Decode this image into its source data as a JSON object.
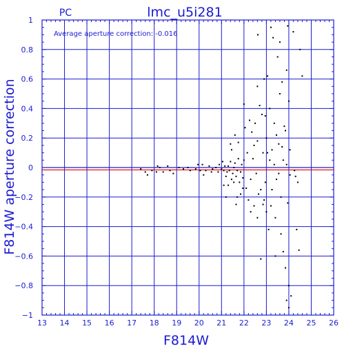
{
  "chart_data": {
    "type": "scatter",
    "panel_label": "PC",
    "title": "lmc_u5i281",
    "annotation": "Average aperture correction: -0.016",
    "xlabel": "F814W",
    "ylabel": "F814W aperture correction",
    "xlim": [
      13,
      26
    ],
    "ylim": [
      -1,
      1
    ],
    "x_ticks": [
      "13",
      "14",
      "15",
      "16",
      "17",
      "18",
      "19",
      "20",
      "21",
      "22",
      "23",
      "24",
      "25",
      "26"
    ],
    "y_ticks": [
      "1",
      "0.8",
      "0.6",
      "0.4",
      "0.2",
      "0",
      "−0.2",
      "−0.4",
      "−0.6",
      "−0.8",
      "−1"
    ],
    "grid": true,
    "reference_lines": [
      {
        "y": 0,
        "color": "#1a1ad0"
      },
      {
        "y": -0.016,
        "color": "#e00000"
      }
    ],
    "colors": {
      "axes": "#1a1ad0",
      "points": "#000000",
      "mean_line": "#e00000"
    },
    "points": [
      [
        17.4,
        -0.01
      ],
      [
        17.6,
        -0.03
      ],
      [
        17.7,
        -0.05
      ],
      [
        17.9,
        -0.02
      ],
      [
        18.1,
        -0.03
      ],
      [
        18.15,
        0.01
      ],
      [
        18.25,
        0.0
      ],
      [
        18.4,
        -0.03
      ],
      [
        18.6,
        0.01
      ],
      [
        18.7,
        -0.02
      ],
      [
        18.85,
        -0.04
      ],
      [
        19.1,
        0.0
      ],
      [
        19.3,
        -0.01
      ],
      [
        19.5,
        0.0
      ],
      [
        19.6,
        -0.02
      ],
      [
        19.85,
        -0.01
      ],
      [
        19.95,
        0.02
      ],
      [
        20.05,
        -0.02
      ],
      [
        20.15,
        0.02
      ],
      [
        20.2,
        -0.05
      ],
      [
        20.3,
        -0.02
      ],
      [
        20.45,
        0.01
      ],
      [
        20.55,
        -0.03
      ],
      [
        20.6,
        -0.01
      ],
      [
        20.75,
        0.0
      ],
      [
        20.85,
        -0.03
      ],
      [
        20.9,
        0.02
      ],
      [
        21.0,
        -0.01
      ],
      [
        21.05,
        0.04
      ],
      [
        21.1,
        -0.02
      ],
      [
        21.15,
        0.01
      ],
      [
        21.2,
        -0.06
      ],
      [
        21.25,
        -0.03
      ],
      [
        21.3,
        0.01
      ],
      [
        21.35,
        -0.02
      ],
      [
        21.4,
        0.04
      ],
      [
        21.45,
        -0.08
      ],
      [
        21.5,
        -0.04
      ],
      [
        21.55,
        0.0
      ],
      [
        21.6,
        0.03
      ],
      [
        21.65,
        -0.06
      ],
      [
        21.7,
        -0.02
      ],
      [
        21.75,
        0.06
      ],
      [
        21.8,
        -0.1
      ],
      [
        21.85,
        -0.03
      ],
      [
        21.9,
        0.02
      ],
      [
        21.95,
        -0.07
      ],
      [
        22.0,
        0.05
      ],
      [
        21.1,
        -0.12
      ],
      [
        21.2,
        -0.2
      ],
      [
        21.3,
        -0.12
      ],
      [
        21.4,
        0.16
      ],
      [
        21.45,
        0.12
      ],
      [
        21.55,
        -0.1
      ],
      [
        21.6,
        0.22
      ],
      [
        21.7,
        -0.2
      ],
      [
        21.75,
        0.17
      ],
      [
        21.85,
        -0.18
      ],
      [
        21.95,
        -0.14
      ],
      [
        22.0,
        0.43
      ],
      [
        22.05,
        0.27
      ],
      [
        22.1,
        -0.14
      ],
      [
        22.15,
        0.1
      ],
      [
        22.2,
        -0.22
      ],
      [
        22.25,
        0.32
      ],
      [
        22.3,
        -0.08
      ],
      [
        22.35,
        0.24
      ],
      [
        22.4,
        0.06
      ],
      [
        22.45,
        -0.26
      ],
      [
        22.5,
        0.3
      ],
      [
        22.55,
        -0.04
      ],
      [
        22.6,
        0.18
      ],
      [
        22.62,
        0.9
      ],
      [
        22.65,
        -0.18
      ],
      [
        22.7,
        0.42
      ],
      [
        22.75,
        -0.62
      ],
      [
        22.8,
        0.36
      ],
      [
        22.85,
        0.1
      ],
      [
        22.9,
        -0.22
      ],
      [
        22.95,
        0.35
      ],
      [
        23.0,
        -0.3
      ],
      [
        23.0,
        0.2
      ],
      [
        23.05,
        0.62
      ],
      [
        23.1,
        -0.42
      ],
      [
        23.15,
        0.05
      ],
      [
        23.2,
        -0.26
      ],
      [
        23.25,
        0.12
      ],
      [
        23.3,
        0.88
      ],
      [
        23.35,
        0.02
      ],
      [
        23.4,
        -0.34
      ],
      [
        23.45,
        0.22
      ],
      [
        23.5,
        0.75
      ],
      [
        23.55,
        -0.04
      ],
      [
        23.6,
        0.5
      ],
      [
        23.65,
        -0.45
      ],
      [
        23.7,
        0.14
      ],
      [
        23.75,
        -0.57
      ],
      [
        23.8,
        0.28
      ],
      [
        23.85,
        -0.68
      ],
      [
        23.9,
        0.02
      ],
      [
        23.95,
        0.96
      ],
      [
        24.0,
        -0.8
      ],
      [
        24.05,
        -0.05
      ],
      [
        24.1,
        -0.87
      ],
      [
        24.2,
        0.92
      ],
      [
        24.3,
        -0.06
      ],
      [
        24.35,
        -0.42
      ],
      [
        24.45,
        -0.56
      ],
      [
        24.5,
        0.8
      ],
      [
        24.6,
        0.62
      ],
      [
        22.75,
        -0.15
      ],
      [
        22.85,
        -0.25
      ],
      [
        22.95,
        -0.1
      ],
      [
        23.05,
        0.1
      ],
      [
        23.15,
        0.4
      ],
      [
        23.25,
        -0.15
      ],
      [
        23.35,
        0.3
      ],
      [
        23.45,
        -0.08
      ],
      [
        23.55,
        0.16
      ],
      [
        23.65,
        -0.2
      ],
      [
        23.75,
        0.05
      ],
      [
        23.85,
        0.25
      ],
      [
        23.95,
        -0.24
      ],
      [
        24.05,
        0.12
      ],
      [
        23.2,
        0.95
      ],
      [
        23.6,
        0.85
      ],
      [
        23.9,
        0.66
      ],
      [
        24.0,
        0.45
      ],
      [
        22.6,
        0.55
      ],
      [
        22.9,
        0.6
      ],
      [
        23.7,
        0.58
      ],
      [
        23.4,
        -0.6
      ],
      [
        22.6,
        -0.34
      ],
      [
        22.3,
        -0.3
      ],
      [
        24.4,
        -0.1
      ],
      [
        24.25,
        -0.02
      ],
      [
        23.9,
        -0.9
      ],
      [
        24.0,
        -0.95
      ],
      [
        22.45,
        0.15
      ],
      [
        21.65,
        -0.25
      ]
    ]
  }
}
